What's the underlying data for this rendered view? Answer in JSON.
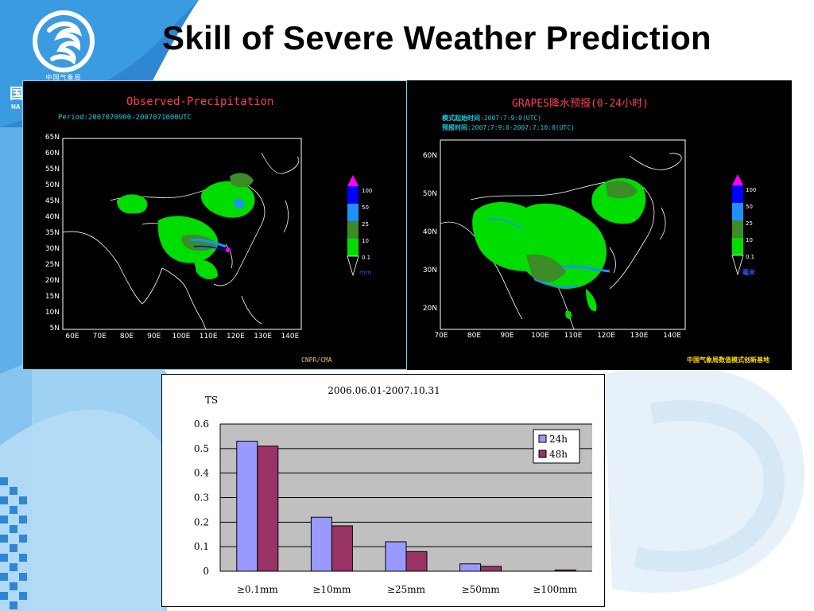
{
  "slide": {
    "title": "Skill of Severe Weather Prediction",
    "logo_caption": "中国气象局",
    "side_char": "国",
    "side_abbr": "NA"
  },
  "left_map": {
    "title": "Observed-Precipitation",
    "period": "Period:2007070900-2007071000UTC",
    "credit": "CNPR/CMA",
    "lat_labels": [
      "65N",
      "60N",
      "55N",
      "50N",
      "45N",
      "40N",
      "35N",
      "30N",
      "25N",
      "20N",
      "15N",
      "10N",
      "5N"
    ],
    "lon_labels": [
      "60E",
      "70E",
      "80E",
      "90E",
      "100E",
      "110E",
      "120E",
      "130E",
      "140E"
    ],
    "legend_labels": [
      "100",
      "50",
      "25",
      "10",
      "0.1"
    ],
    "legend_unit": "mm"
  },
  "right_map": {
    "title": "GRAPES降水预报(0-24小时)",
    "line1_label": "模式起始时间",
    "line1_value": ":2007:7:9:0(UTC)",
    "line2_label": "预报时间",
    "line2_value": ":2007:7:9:0-2007:7:10:0(UTC)",
    "credit": "中国气象局数值模式创新基地",
    "lat_labels": [
      "60N",
      "50N",
      "40N",
      "30N",
      "20N"
    ],
    "lon_labels": [
      "70E",
      "80E",
      "90E",
      "100E",
      "110E",
      "120E",
      "130E",
      "140E"
    ],
    "legend_labels": [
      "100",
      "50",
      "25",
      "10",
      "0.1"
    ],
    "legend_unit": "毫米"
  },
  "legend_colors": [
    "#ff00ff",
    "#0000ff",
    "#1e90ff",
    "#3c8c28",
    "#00dd00"
  ],
  "chart_data": {
    "type": "bar",
    "title": "2006.06.01-2007.10.31",
    "ylabel": "TS",
    "xlabel": "",
    "categories": [
      "≥0.1mm",
      "≥10mm",
      "≥25mm",
      "≥50mm",
      "≥100mm"
    ],
    "series": [
      {
        "name": "24h",
        "color": "#9999ff",
        "values": [
          0.53,
          0.22,
          0.12,
          0.03,
          0.0
        ]
      },
      {
        "name": "48h",
        "color": "#993366",
        "values": [
          0.51,
          0.185,
          0.08,
          0.02,
          0.005
        ]
      }
    ],
    "ylim": [
      0,
      0.6
    ],
    "yticks": [
      "0",
      "0.1",
      "0.2",
      "0.3",
      "0.4",
      "0.5",
      "0.6"
    ],
    "grid": true,
    "legend_position": "top-right",
    "plot_background": "#c0c0c0"
  }
}
